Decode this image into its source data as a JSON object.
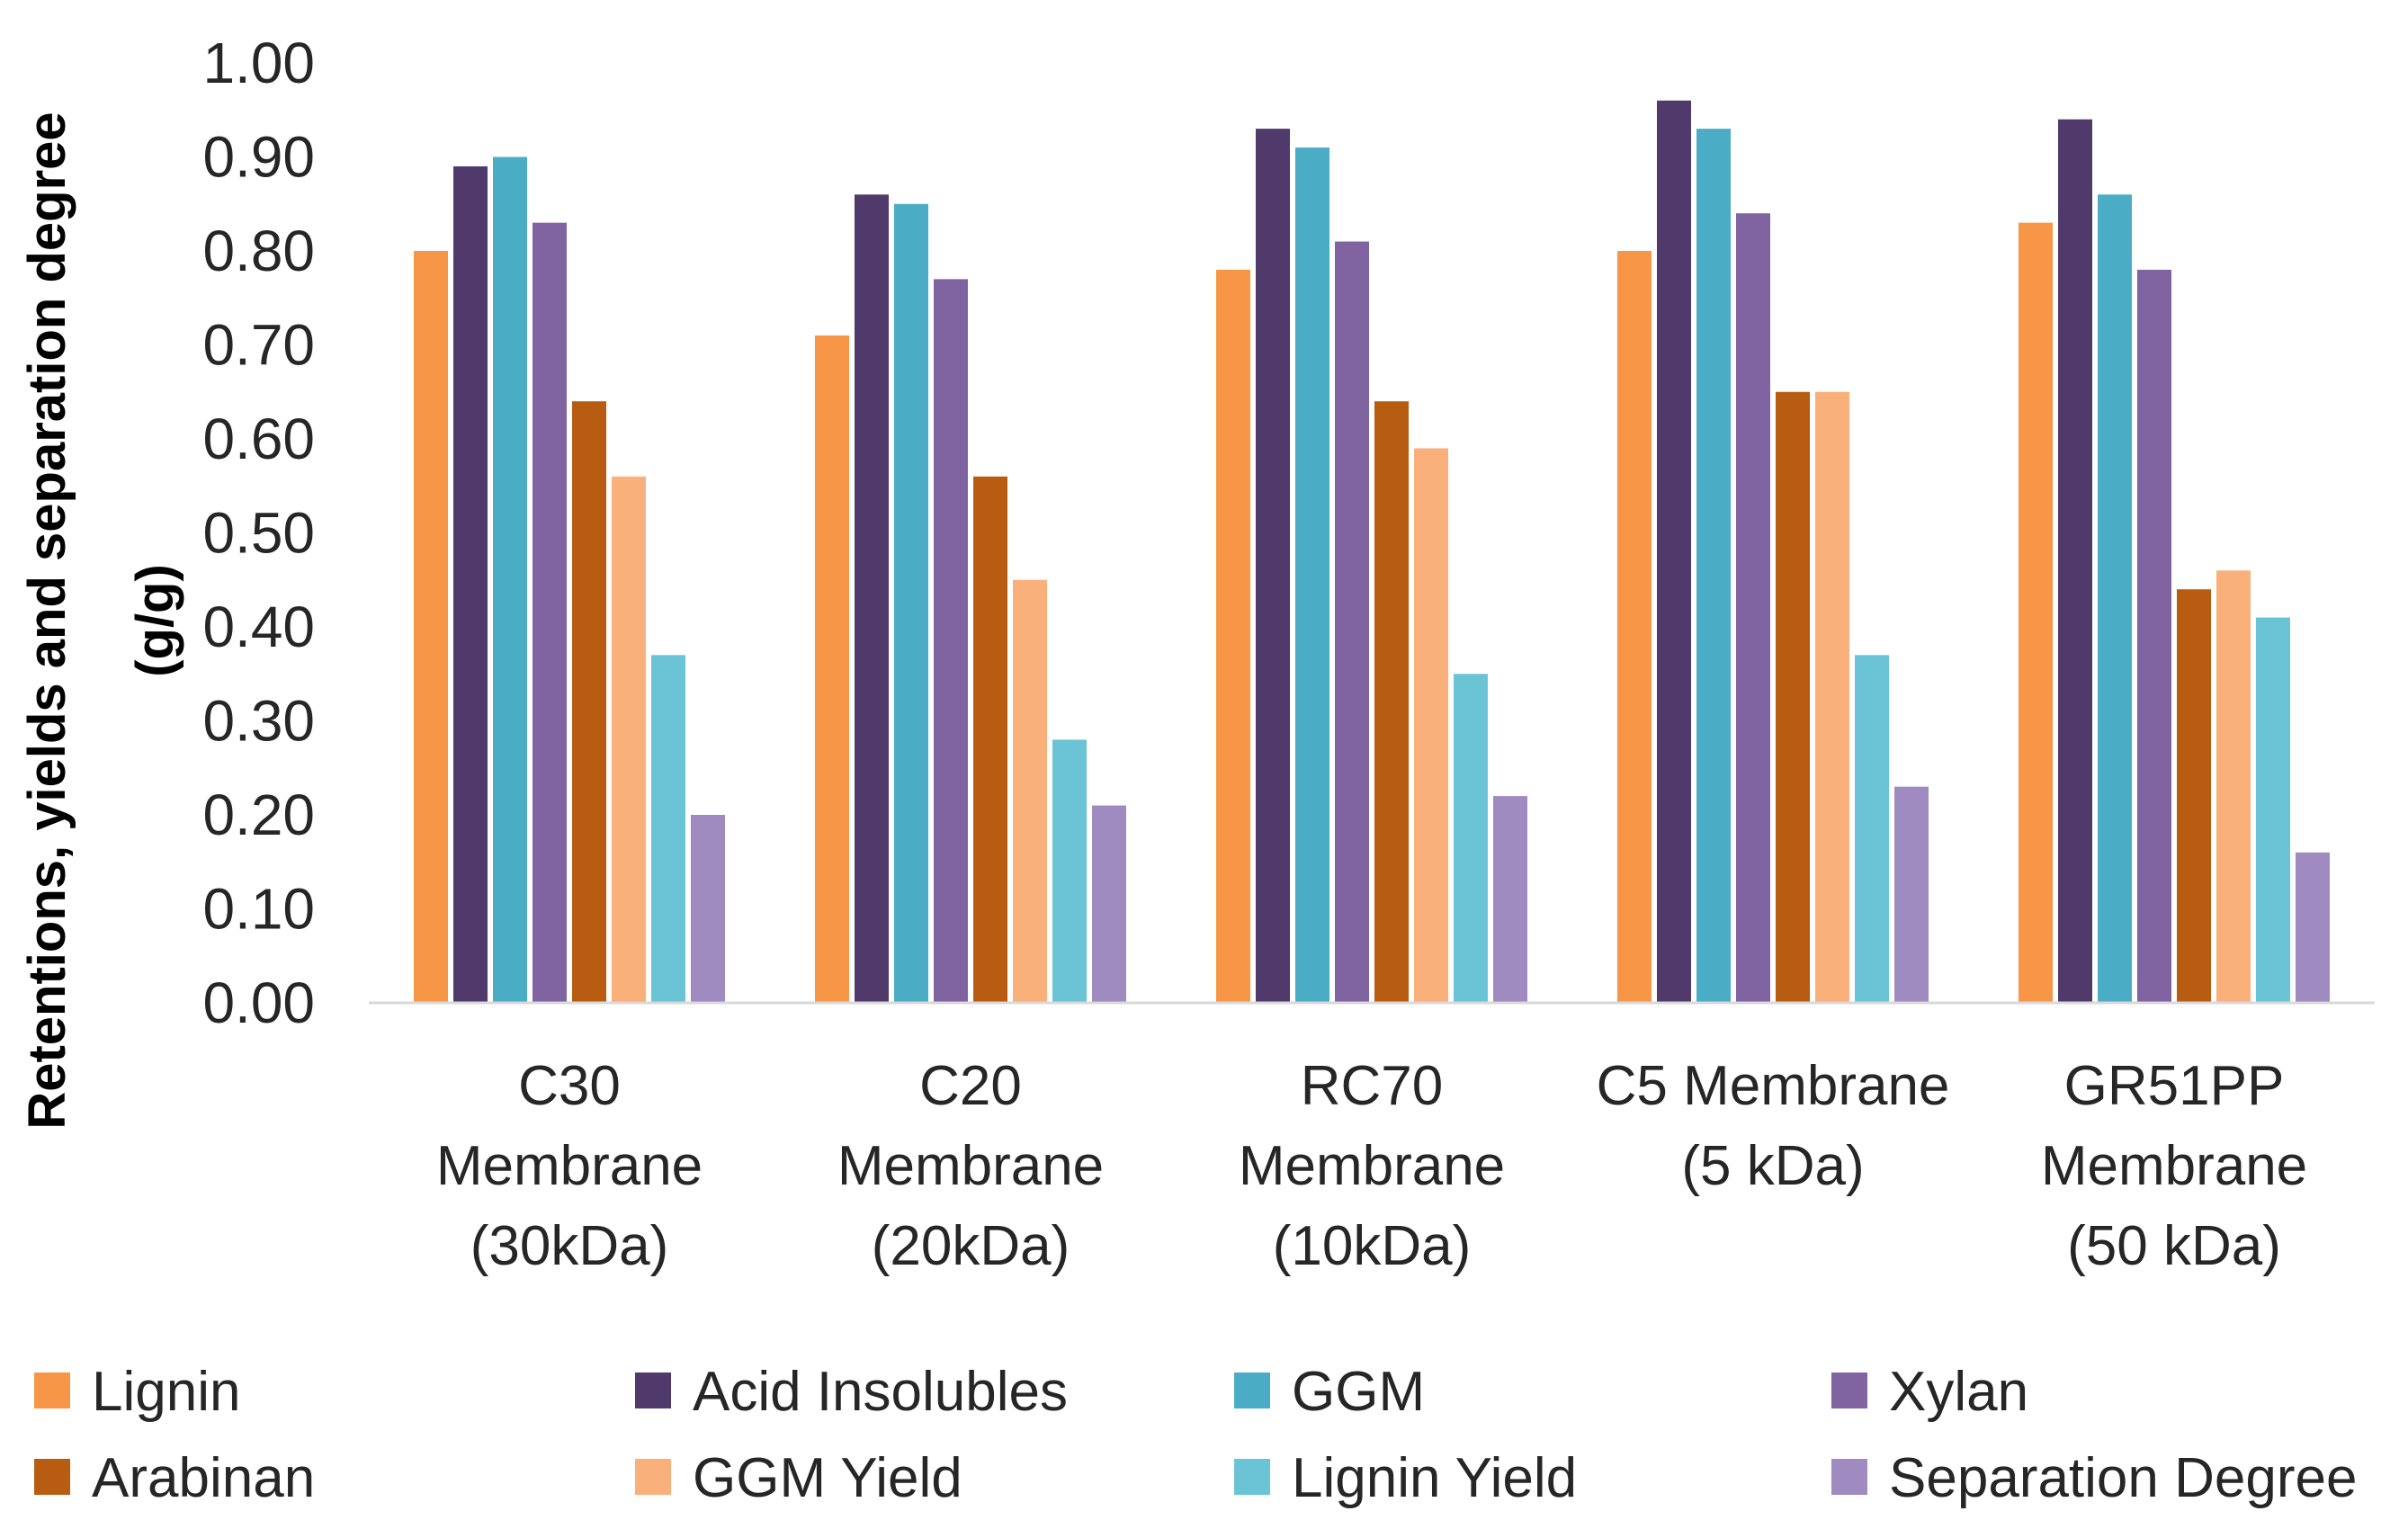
{
  "chart_data": {
    "type": "bar",
    "title": "",
    "xlabel": "",
    "ylabel": "Retentions, yields and separation degree",
    "ylabel_unit": "(g/g)",
    "ylim": [
      0,
      1.0
    ],
    "yticks": [
      "0.00",
      "0.10",
      "0.20",
      "0.30",
      "0.40",
      "0.50",
      "0.60",
      "0.70",
      "0.80",
      "0.90",
      "1.00"
    ],
    "grid": false,
    "legend_position": "bottom",
    "categories": [
      [
        "C30",
        "Membrane",
        "(30kDa)"
      ],
      [
        "C20",
        "Membrane",
        "(20kDa)"
      ],
      [
        "RC70",
        "Membrane",
        "(10kDa)"
      ],
      [
        "C5 Membrane",
        "(5 kDa)"
      ],
      [
        "GR51PP",
        "Membrane",
        "(50 kDa)"
      ]
    ],
    "series": [
      {
        "name": "Lignin",
        "color": "#F79646",
        "values": [
          0.8,
          0.71,
          0.78,
          0.8,
          0.83
        ]
      },
      {
        "name": "Acid Insolubles",
        "color": "#4F3A6B",
        "values": [
          0.89,
          0.86,
          0.93,
          0.96,
          0.94
        ]
      },
      {
        "name": "GGM",
        "color": "#4BACC6",
        "values": [
          0.9,
          0.85,
          0.91,
          0.93,
          0.86
        ]
      },
      {
        "name": "Xylan",
        "color": "#8064A2",
        "values": [
          0.83,
          0.77,
          0.81,
          0.84,
          0.78
        ]
      },
      {
        "name": "Arabinan",
        "color": "#B85C12",
        "values": [
          0.64,
          0.56,
          0.64,
          0.65,
          0.44
        ]
      },
      {
        "name": "GGM Yield",
        "color": "#FAB07A",
        "values": [
          0.56,
          0.45,
          0.59,
          0.65,
          0.46
        ]
      },
      {
        "name": "Lignin Yield",
        "color": "#6BC4D6",
        "values": [
          0.37,
          0.28,
          0.35,
          0.37,
          0.41
        ]
      },
      {
        "name": "Separation Degree",
        "color": "#A08BC0",
        "values": [
          0.2,
          0.21,
          0.22,
          0.23,
          0.16
        ]
      }
    ]
  }
}
